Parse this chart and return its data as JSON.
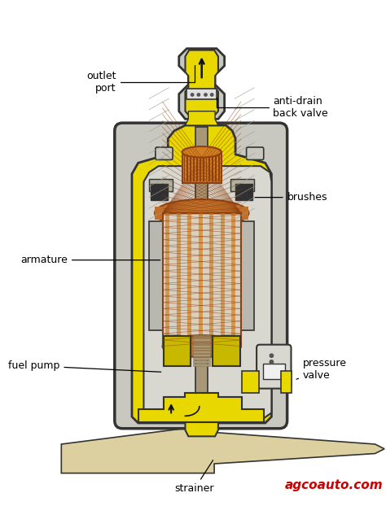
{
  "bg_color": "#ffffff",
  "labels": {
    "outlet_port": "outlet\nport",
    "anti_drain": "anti-drain\nback valve",
    "brushes": "brushes",
    "armature": "armature",
    "fuel_pump": "fuel pump",
    "pressure_valve": "pressure\nvalve",
    "strainer": "strainer",
    "agco": "agcoauto.com"
  },
  "colors": {
    "yellow": "#e8d800",
    "yellow_mid": "#c8b800",
    "gray_body": "#c8c8c0",
    "gray_dark": "#a0a090",
    "gray_light": "#d8d8d0",
    "gray_hatched": "#b8b8b0",
    "copper": "#c07028",
    "copper_light": "#d09040",
    "copper_dark": "#904010",
    "copper_top": "#d08020",
    "shaft": "#a89878",
    "shaft_dark": "#887858",
    "black": "#111111",
    "white": "#ffffff",
    "red_text": "#cc0000",
    "beige": "#ddd0a0",
    "outline": "#333333",
    "brush_black": "#303030",
    "brush_gray": "#b0b0a0"
  },
  "figsize": [
    4.74,
    6.22
  ],
  "dpi": 100
}
